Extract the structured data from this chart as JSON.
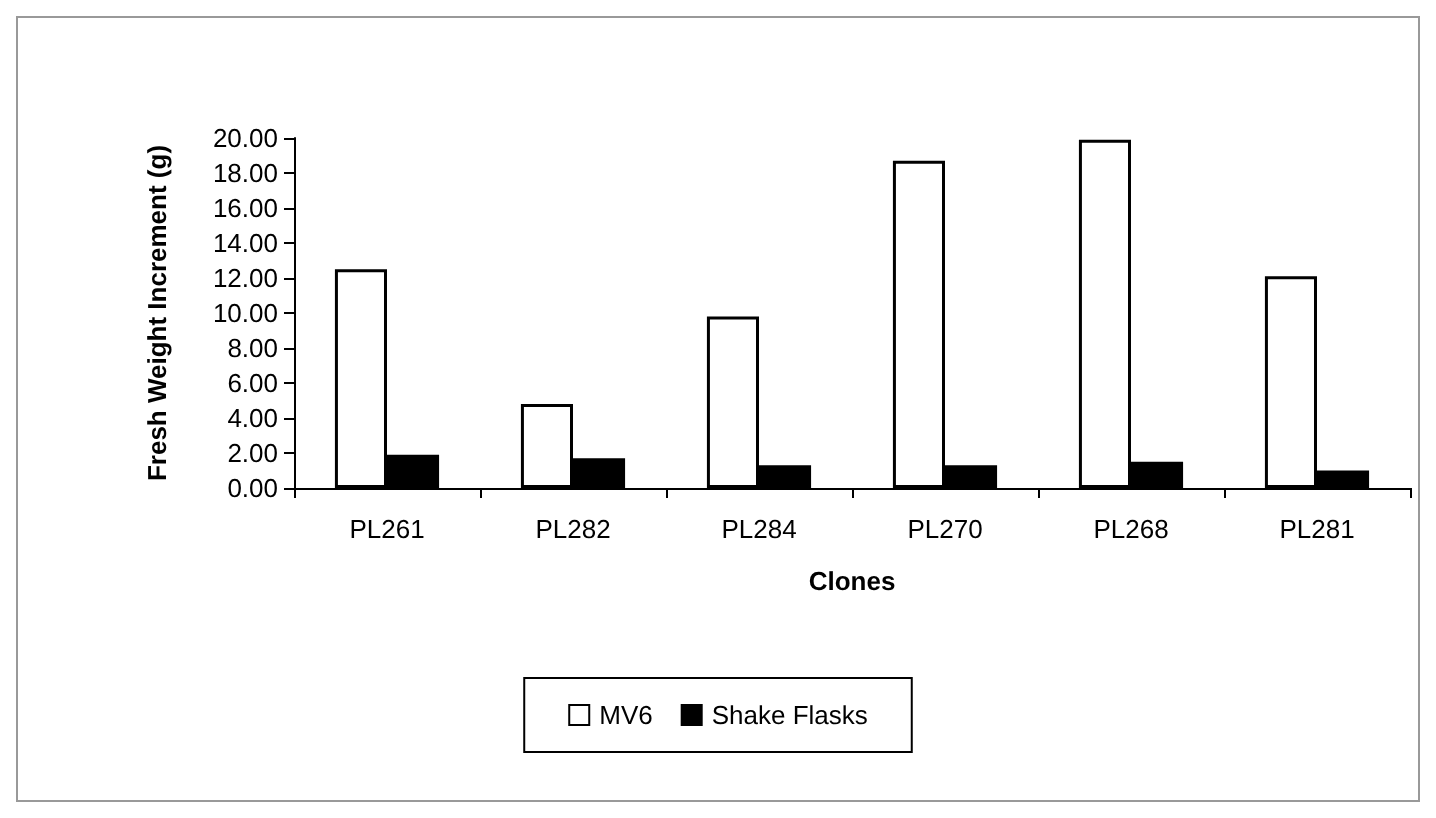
{
  "chart_data": {
    "type": "bar",
    "xlabel": "Clones",
    "ylabel": "Fresh Weight Increment (g)",
    "categories": [
      "PL261",
      "PL282",
      "PL284",
      "PL270",
      "PL268",
      "PL281"
    ],
    "series": [
      {
        "name": "MV6",
        "color": "#ffffff",
        "values": [
          12.5,
          4.8,
          9.8,
          18.7,
          19.9,
          12.1
        ]
      },
      {
        "name": "Shake Flasks",
        "color": "#000000",
        "values": [
          1.9,
          1.7,
          1.3,
          1.3,
          1.5,
          1.0
        ]
      }
    ],
    "ylim": [
      0,
      20
    ],
    "yticks": [
      {
        "value": 0,
        "label": "0.00"
      },
      {
        "value": 2,
        "label": "2.00"
      },
      {
        "value": 4,
        "label": "4.00"
      },
      {
        "value": 6,
        "label": "6.00"
      },
      {
        "value": 8,
        "label": "8.00"
      },
      {
        "value": 10,
        "label": "10.00"
      },
      {
        "value": 12,
        "label": "12.00"
      },
      {
        "value": 14,
        "label": "14.00"
      },
      {
        "value": 16,
        "label": "16.00"
      },
      {
        "value": 18,
        "label": "18.00"
      },
      {
        "value": 20,
        "label": "20.00"
      }
    ],
    "grid": false,
    "legend": "bottom"
  }
}
